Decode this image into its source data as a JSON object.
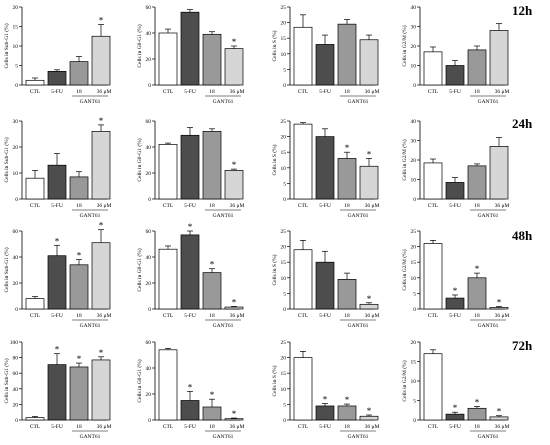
{
  "figure": {
    "row_labels": [
      "12h",
      "24h",
      "48h",
      "72h"
    ],
    "group_label": "GANT61",
    "unit": "μM"
  },
  "chart_data": [
    {
      "type": "bar",
      "time": "12h",
      "ylabel": "Cells in Sub-G1 (%)",
      "ylim": [
        0,
        20
      ],
      "yticks": [
        0,
        5,
        10,
        15,
        20
      ],
      "categories": [
        "CTL",
        "5-FU",
        "18",
        "36"
      ],
      "values": [
        1.2,
        3.5,
        6.0,
        12.5
      ],
      "errors": [
        0.6,
        0.4,
        1.3,
        3.0
      ],
      "significant": [
        false,
        false,
        false,
        true
      ]
    },
    {
      "type": "bar",
      "time": "12h",
      "ylabel": "Cells in G0-G1 (%)",
      "ylim": [
        0,
        60
      ],
      "yticks": [
        0,
        20,
        40,
        60
      ],
      "categories": [
        "CTL",
        "5-FU",
        "18",
        "36"
      ],
      "values": [
        40,
        56,
        39,
        28
      ],
      "errors": [
        3,
        2,
        2,
        2
      ],
      "significant": [
        false,
        false,
        false,
        true
      ]
    },
    {
      "type": "bar",
      "time": "12h",
      "ylabel": "Cells in S (%)",
      "ylim": [
        0,
        25
      ],
      "yticks": [
        0,
        5,
        10,
        15,
        20,
        25
      ],
      "categories": [
        "CTL",
        "5-FU",
        "18",
        "36"
      ],
      "values": [
        18.5,
        13,
        19.5,
        14.5
      ],
      "errors": [
        4,
        3,
        1.5,
        1.5
      ],
      "significant": [
        false,
        false,
        false,
        false
      ]
    },
    {
      "type": "bar",
      "time": "12h",
      "ylabel": "Cells in G2/M (%)",
      "ylim": [
        0,
        40
      ],
      "yticks": [
        0,
        10,
        20,
        30,
        40
      ],
      "categories": [
        "CTL",
        "5-FU",
        "18",
        "36"
      ],
      "values": [
        17,
        10,
        18,
        28
      ],
      "errors": [
        2.5,
        2.5,
        2,
        3.5
      ],
      "significant": [
        false,
        false,
        false,
        false
      ]
    },
    {
      "type": "bar",
      "time": "24h",
      "ylabel": "Cells in Sub-G1 (%)",
      "ylim": [
        0,
        30
      ],
      "yticks": [
        0,
        10,
        20,
        30
      ],
      "categories": [
        "CTL",
        "5-FU",
        "18",
        "36"
      ],
      "values": [
        8,
        13,
        8.5,
        26
      ],
      "errors": [
        3,
        4.5,
        2,
        2.5
      ],
      "significant": [
        false,
        false,
        false,
        true
      ]
    },
    {
      "type": "bar",
      "time": "24h",
      "ylabel": "Cells in G0-G1 (%)",
      "ylim": [
        0,
        60
      ],
      "yticks": [
        0,
        20,
        40,
        60
      ],
      "categories": [
        "CTL",
        "5-FU",
        "18",
        "36"
      ],
      "values": [
        42,
        49,
        52,
        22
      ],
      "errors": [
        1,
        6,
        2,
        1
      ],
      "significant": [
        false,
        false,
        false,
        true
      ]
    },
    {
      "type": "bar",
      "time": "24h",
      "ylabel": "Cells in S (%)",
      "ylim": [
        0,
        25
      ],
      "yticks": [
        0,
        5,
        10,
        15,
        20,
        25
      ],
      "categories": [
        "CTL",
        "5-FU",
        "18",
        "36"
      ],
      "values": [
        24,
        20,
        13,
        10.5
      ],
      "errors": [
        0.5,
        2.5,
        2,
        2.5
      ],
      "significant": [
        false,
        false,
        true,
        true
      ]
    },
    {
      "type": "bar",
      "time": "24h",
      "ylabel": "Cells in G2/M (%)",
      "ylim": [
        0,
        40
      ],
      "yticks": [
        0,
        10,
        20,
        30,
        40
      ],
      "categories": [
        "CTL",
        "5-FU",
        "18",
        "36"
      ],
      "values": [
        18.5,
        8.5,
        17,
        27
      ],
      "errors": [
        2,
        2.5,
        1,
        4.5
      ],
      "significant": [
        false,
        false,
        false,
        false
      ]
    },
    {
      "type": "bar",
      "time": "48h",
      "ylabel": "Cells in Sub-G1 (%)",
      "ylim": [
        0,
        60
      ],
      "yticks": [
        0,
        20,
        40,
        60
      ],
      "categories": [
        "CTL",
        "5-FU",
        "18",
        "36"
      ],
      "values": [
        8,
        41,
        34,
        51
      ],
      "errors": [
        1.5,
        8,
        4,
        10
      ],
      "significant": [
        false,
        true,
        true,
        true
      ]
    },
    {
      "type": "bar",
      "time": "48h",
      "ylabel": "Cells in G0-G1 (%)",
      "ylim": [
        0,
        60
      ],
      "yticks": [
        0,
        20,
        40,
        60
      ],
      "categories": [
        "CTL",
        "5-FU",
        "18",
        "36"
      ],
      "values": [
        46,
        57,
        28,
        1.5
      ],
      "errors": [
        2.5,
        3,
        3,
        0.5
      ],
      "significant": [
        false,
        true,
        true,
        true
      ]
    },
    {
      "type": "bar",
      "time": "48h",
      "ylabel": "Cells in S (%)",
      "ylim": [
        0,
        25
      ],
      "yticks": [
        0,
        5,
        10,
        15,
        20,
        25
      ],
      "categories": [
        "CTL",
        "5-FU",
        "18",
        "36"
      ],
      "values": [
        19,
        15,
        9.5,
        1.5
      ],
      "errors": [
        3,
        3.5,
        2,
        0.5
      ],
      "significant": [
        false,
        false,
        false,
        true
      ]
    },
    {
      "type": "bar",
      "time": "48h",
      "ylabel": "Cells in G2/M (%)",
      "ylim": [
        0,
        25
      ],
      "yticks": [
        0,
        5,
        10,
        15,
        20,
        25
      ],
      "categories": [
        "CTL",
        "5-FU",
        "18",
        "36"
      ],
      "values": [
        21,
        3.5,
        10,
        0.5
      ],
      "errors": [
        1,
        1,
        1.5,
        0.3
      ],
      "significant": [
        false,
        true,
        true,
        true
      ]
    },
    {
      "type": "bar",
      "time": "72h",
      "ylabel": "Cells in Sub-G1 (%)",
      "ylim": [
        0,
        100
      ],
      "yticks": [
        0,
        20,
        40,
        60,
        80,
        100
      ],
      "categories": [
        "CTL",
        "5-FU",
        "18",
        "36"
      ],
      "values": [
        3,
        71,
        68,
        77
      ],
      "errors": [
        1.5,
        14,
        5,
        4
      ],
      "significant": [
        false,
        true,
        true,
        true
      ]
    },
    {
      "type": "bar",
      "time": "72h",
      "ylabel": "Cells in G0-G1 (%)",
      "ylim": [
        0,
        60
      ],
      "yticks": [
        0,
        20,
        40,
        60
      ],
      "categories": [
        "CTL",
        "5-FU",
        "18",
        "36"
      ],
      "values": [
        54,
        15,
        10,
        1
      ],
      "errors": [
        1,
        7,
        6,
        0.5
      ],
      "significant": [
        false,
        true,
        true,
        true
      ]
    },
    {
      "type": "bar",
      "time": "72h",
      "ylabel": "Cells in S (%)",
      "ylim": [
        0,
        25
      ],
      "yticks": [
        0,
        5,
        10,
        15,
        20,
        25
      ],
      "categories": [
        "CTL",
        "5-FU",
        "18",
        "36"
      ],
      "values": [
        20,
        4.5,
        4.5,
        1.2
      ],
      "errors": [
        2,
        0.8,
        0.6,
        0.4
      ],
      "significant": [
        false,
        true,
        true,
        true
      ]
    },
    {
      "type": "bar",
      "time": "72h",
      "ylabel": "Cells in G2/M (%)",
      "ylim": [
        0,
        20
      ],
      "yticks": [
        0,
        5,
        10,
        15,
        20
      ],
      "categories": [
        "CTL",
        "5-FU",
        "18",
        "36"
      ],
      "values": [
        17,
        1.5,
        3,
        0.8
      ],
      "errors": [
        1,
        0.5,
        0.5,
        0.3
      ],
      "significant": [
        false,
        true,
        true,
        true
      ]
    }
  ]
}
